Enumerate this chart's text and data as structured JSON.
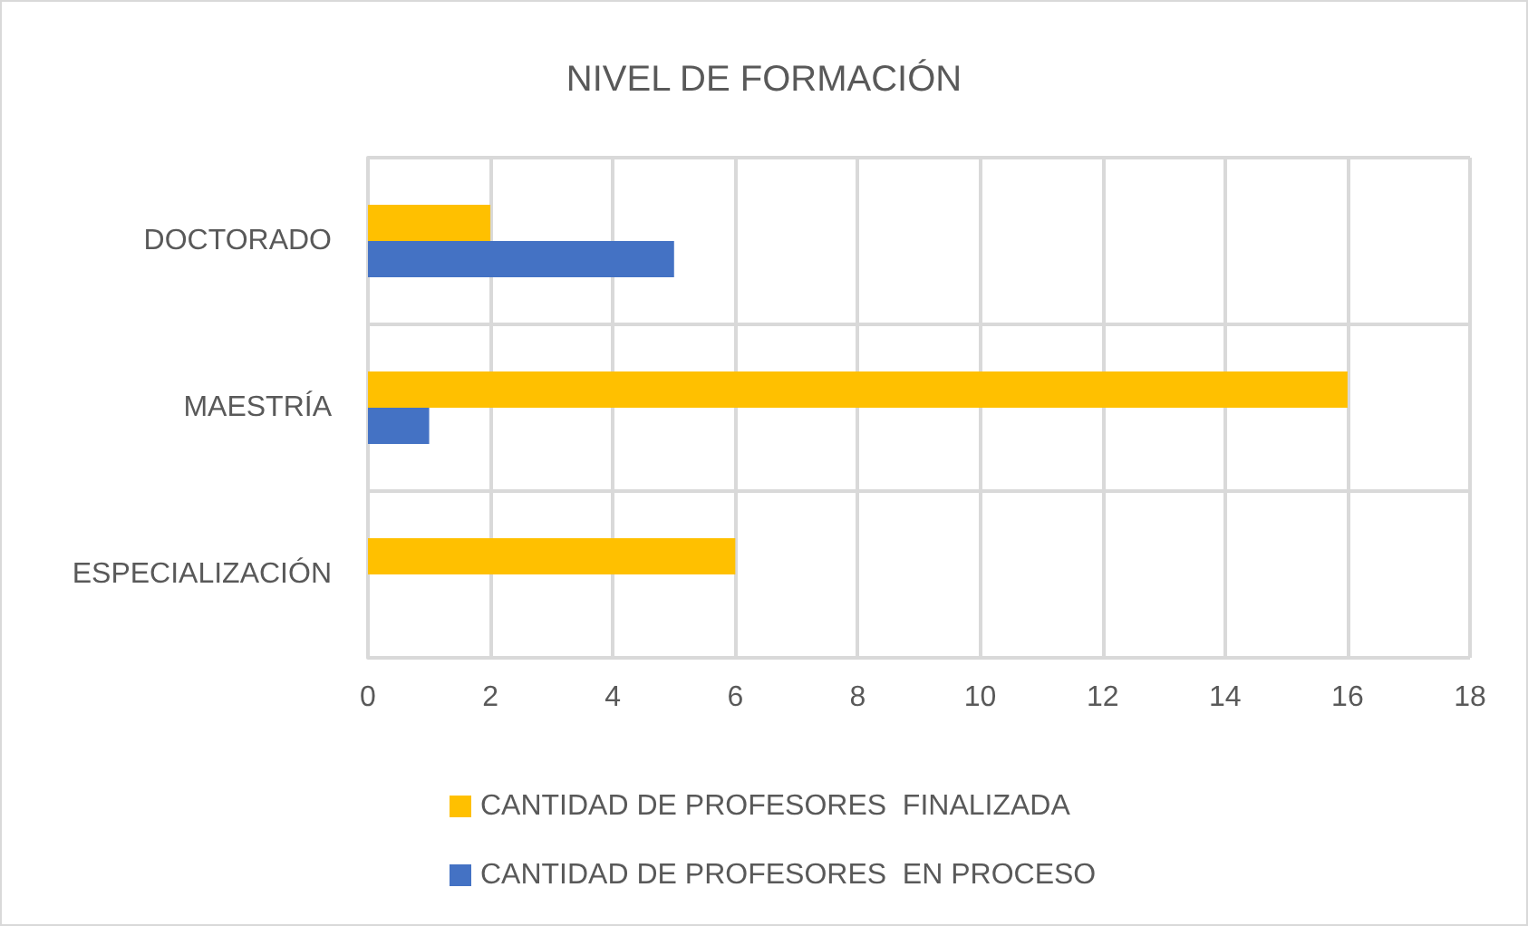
{
  "chart_data": {
    "type": "bar",
    "orientation": "horizontal",
    "title": "NIVEL DE FORMACIÓN",
    "categories": [
      "DOCTORADO",
      "MAESTRÍA",
      "ESPECIALIZACIÓN"
    ],
    "series": [
      {
        "name": "CANTIDAD DE PROFESORES  FINALIZADA",
        "color": "#ffc000",
        "values": [
          2,
          16,
          6
        ]
      },
      {
        "name": "CANTIDAD DE PROFESORES  EN PROCESO",
        "color": "#4472c4",
        "values": [
          5,
          1,
          0
        ]
      }
    ],
    "xlim": [
      0,
      18
    ],
    "xticks": [
      0,
      2,
      4,
      6,
      8,
      10,
      12,
      14,
      16,
      18
    ],
    "grid": true,
    "legend": "bottom"
  }
}
